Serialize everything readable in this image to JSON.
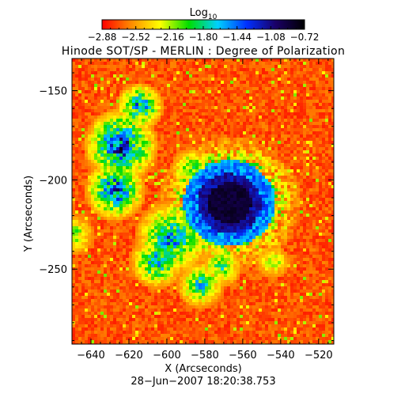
{
  "chart_data": {
    "type": "heatmap",
    "title": "Hinode SOT/SP - MERLIN : Degree of Polarization",
    "colorbar": {
      "label_main": "Log",
      "label_sub": "10",
      "ticks": [
        "−2.88",
        "−2.52",
        "−2.16",
        "−1.80",
        "−1.44",
        "−1.08",
        "−0.72"
      ],
      "range": [
        -2.88,
        -0.72
      ],
      "colors": [
        "#ff0000",
        "#ff8a00",
        "#ffff00",
        "#00dd00",
        "#00d0ff",
        "#0030ff",
        "#1a0066",
        "#000000"
      ]
    },
    "xlabel": "X (Arcseconds)",
    "ylabel": "Y (Arcseconds)",
    "xlim": [
      -650,
      -512
    ],
    "ylim": [
      -292,
      -132
    ],
    "xticks": [
      {
        "value": -640,
        "label": "−640"
      },
      {
        "value": -620,
        "label": "−620"
      },
      {
        "value": -600,
        "label": "−600"
      },
      {
        "value": -580,
        "label": "−580"
      },
      {
        "value": -560,
        "label": "−560"
      },
      {
        "value": -540,
        "label": "−540"
      },
      {
        "value": -520,
        "label": "−520"
      }
    ],
    "yticks": [
      {
        "value": -150,
        "label": "−150"
      },
      {
        "value": -200,
        "label": "−200"
      },
      {
        "value": -250,
        "label": "−250"
      }
    ],
    "date_label": "28−Jun−2007 18:20:38.753",
    "features": {
      "sunspot_center": [
        -567,
        -213
      ],
      "sunspot_peak_value": -0.72,
      "background_value": -2.88
    }
  }
}
